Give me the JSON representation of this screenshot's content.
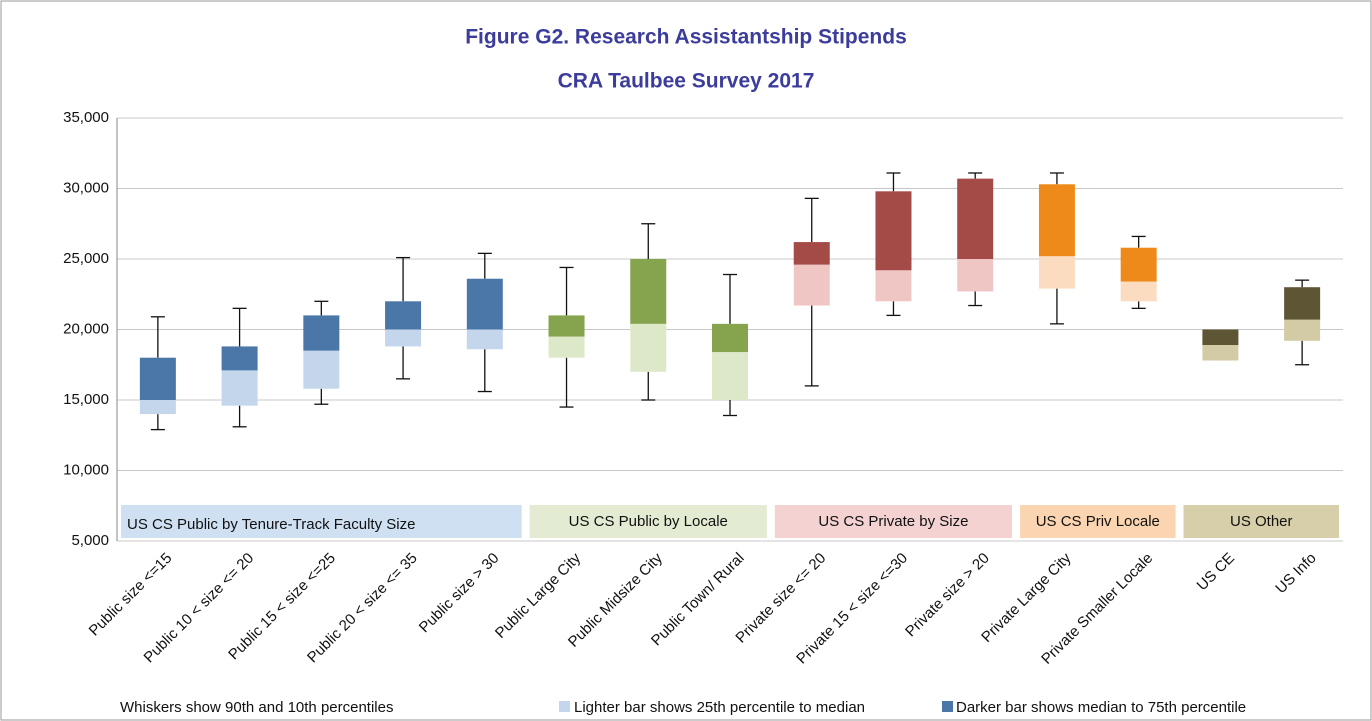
{
  "chart_data": {
    "type": "box",
    "title": "Figure G2. Research Assistantship Stipends",
    "subtitle": "CRA Taulbee Survey 2017",
    "ylim": [
      5000,
      35000
    ],
    "yticks": [
      {
        "value": 5000,
        "label": "5,000"
      },
      {
        "value": 10000,
        "label": "10,000"
      },
      {
        "value": 15000,
        "label": "15,000"
      },
      {
        "value": 20000,
        "label": "20,000"
      },
      {
        "value": 25000,
        "label": "25,000"
      },
      {
        "value": 30000,
        "label": "30,000"
      },
      {
        "value": 35000,
        "label": "35,000"
      }
    ],
    "grid": true,
    "series": [
      {
        "name": "US CS Public by Tenure-Track Faculty Size",
        "color": "#4a76a8",
        "light_color": "#c3d6ec",
        "band_color": "#cfe0f2",
        "categories": [
          "Public size <=15",
          "Public 10 < size <= 20",
          "Public 15 < size <=25",
          "Public 20 < size <= 35",
          "Public size > 30"
        ],
        "p10": [
          12900,
          13100,
          14700,
          16500,
          15600
        ],
        "p25": [
          14000,
          14600,
          15800,
          18800,
          18600
        ],
        "median": [
          15000,
          17100,
          18500,
          20000,
          20000
        ],
        "p75": [
          18000,
          18800,
          21000,
          22000,
          23600
        ],
        "p90": [
          20900,
          21500,
          22000,
          25100,
          25400
        ]
      },
      {
        "name": "US CS Public by Locale",
        "color": "#86a34d",
        "light_color": "#dde8c9",
        "band_color": "#e3ecd3",
        "categories": [
          "Public Large City",
          "Public Midsize City",
          "Public Town/ Rural"
        ],
        "p10": [
          14500,
          15000,
          13900
        ],
        "p25": [
          18000,
          17000,
          15000
        ],
        "median": [
          19500,
          20400,
          18400
        ],
        "p75": [
          21000,
          25000,
          20400
        ],
        "p90": [
          24400,
          27500,
          23900
        ]
      },
      {
        "name": "US CS Private by Size",
        "color": "#a44a47",
        "light_color": "#f0c6c5",
        "band_color": "#f3d2d1",
        "categories": [
          "Private size <= 20",
          "Private 15 < size <=30",
          "Private size > 20"
        ],
        "p10": [
          16000,
          21000,
          21700
        ],
        "p25": [
          21700,
          22000,
          22700
        ],
        "median": [
          24600,
          24200,
          25000
        ],
        "p75": [
          26200,
          29800,
          30700
        ],
        "p90": [
          29300,
          31100,
          31100
        ]
      },
      {
        "name": "US CS Priv Locale",
        "color": "#ee8a1a",
        "light_color": "#fcdcc0",
        "band_color": "#fbd5b1",
        "categories": [
          "Private Large City",
          "Private Smaller Locale"
        ],
        "p10": [
          20400,
          21500
        ],
        "p25": [
          22900,
          22000
        ],
        "median": [
          25200,
          23400
        ],
        "p75": [
          30300,
          25800
        ],
        "p90": [
          31100,
          26600
        ]
      },
      {
        "name": "US Other",
        "color": "#5e5535",
        "light_color": "#d3cba6",
        "band_color": "#d6cfa9",
        "categories": [
          "US CE",
          "US Info"
        ],
        "p10": [
          null,
          17500
        ],
        "p25": [
          17800,
          19200
        ],
        "median": [
          18900,
          20700
        ],
        "p75": [
          20000,
          23000
        ],
        "p90": [
          null,
          23500
        ]
      }
    ],
    "notes": [
      "Whiskers show 90th and 10th percentiles",
      "Lighter bar shows 25th percentile to median",
      "Darker bar shows median to 75th percentile"
    ]
  }
}
